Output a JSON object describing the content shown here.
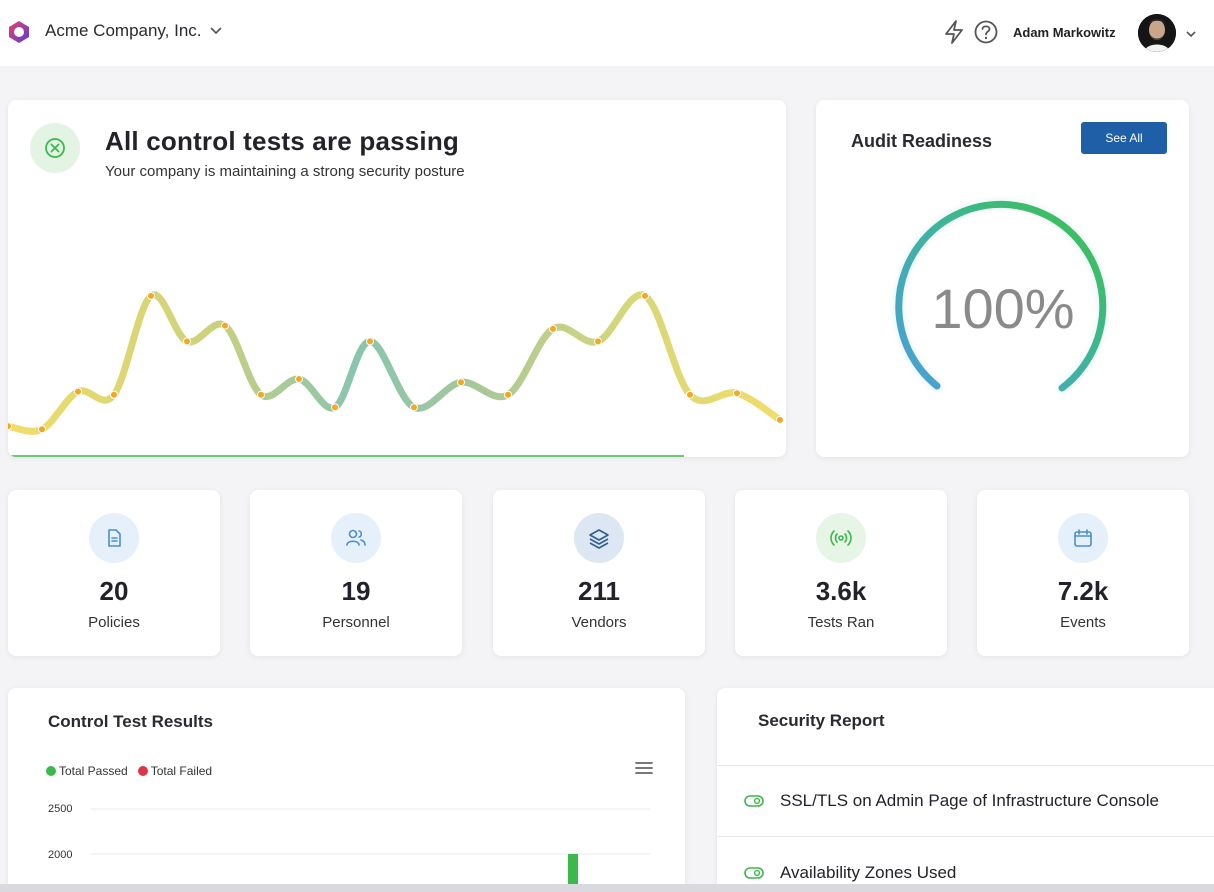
{
  "header": {
    "company": "Acme Company, Inc.",
    "user_name": "Adam Markowitz",
    "icons": [
      "lightning-icon",
      "help-icon",
      "chevron-down-icon"
    ]
  },
  "hero": {
    "title": "All control tests are passing",
    "subtitle": "Your company is maintaining a strong security posture",
    "trend_values": [
      12,
      10,
      34,
      32,
      95,
      66,
      76,
      32,
      42,
      24,
      66,
      24,
      40,
      32,
      74,
      66,
      95,
      32,
      33,
      16,
      16
    ]
  },
  "audit": {
    "title": "Audit Readiness",
    "see_all_label": "See All",
    "value": "100%",
    "fraction": 1.0
  },
  "stats": [
    {
      "value": "20",
      "label": "Policies",
      "icon": "document-icon"
    },
    {
      "value": "19",
      "label": "Personnel",
      "icon": "users-icon"
    },
    {
      "value": "211",
      "label": "Vendors",
      "icon": "layers-icon"
    },
    {
      "value": "3.6k",
      "label": "Tests Ran",
      "icon": "broadcast-icon"
    },
    {
      "value": "7.2k",
      "label": "Events",
      "icon": "calendar-icon"
    }
  ],
  "control_tests": {
    "title": "Control Test Results",
    "legend_passed": "Total Passed",
    "legend_failed": "Total Failed"
  },
  "chart_data": {
    "type": "bar",
    "title": "Control Test Results",
    "series": [
      {
        "name": "Total Passed",
        "color": "#3cb94a"
      },
      {
        "name": "Total Failed",
        "color": "#dc3545"
      }
    ],
    "y_ticks": [
      "2500",
      "2000"
    ],
    "ylim_visible": [
      1900,
      2500
    ],
    "visible_bar": {
      "series": "Total Passed",
      "value": 2000
    }
  },
  "security_report": {
    "title": "Security Report",
    "items": [
      "SSL/TLS on Admin Page of Infrastructure Console",
      "Availability Zones Used"
    ]
  },
  "colors": {
    "accent": "#1f5fa8",
    "pass_green": "#3cb94a",
    "fail_red": "#dc3545"
  }
}
